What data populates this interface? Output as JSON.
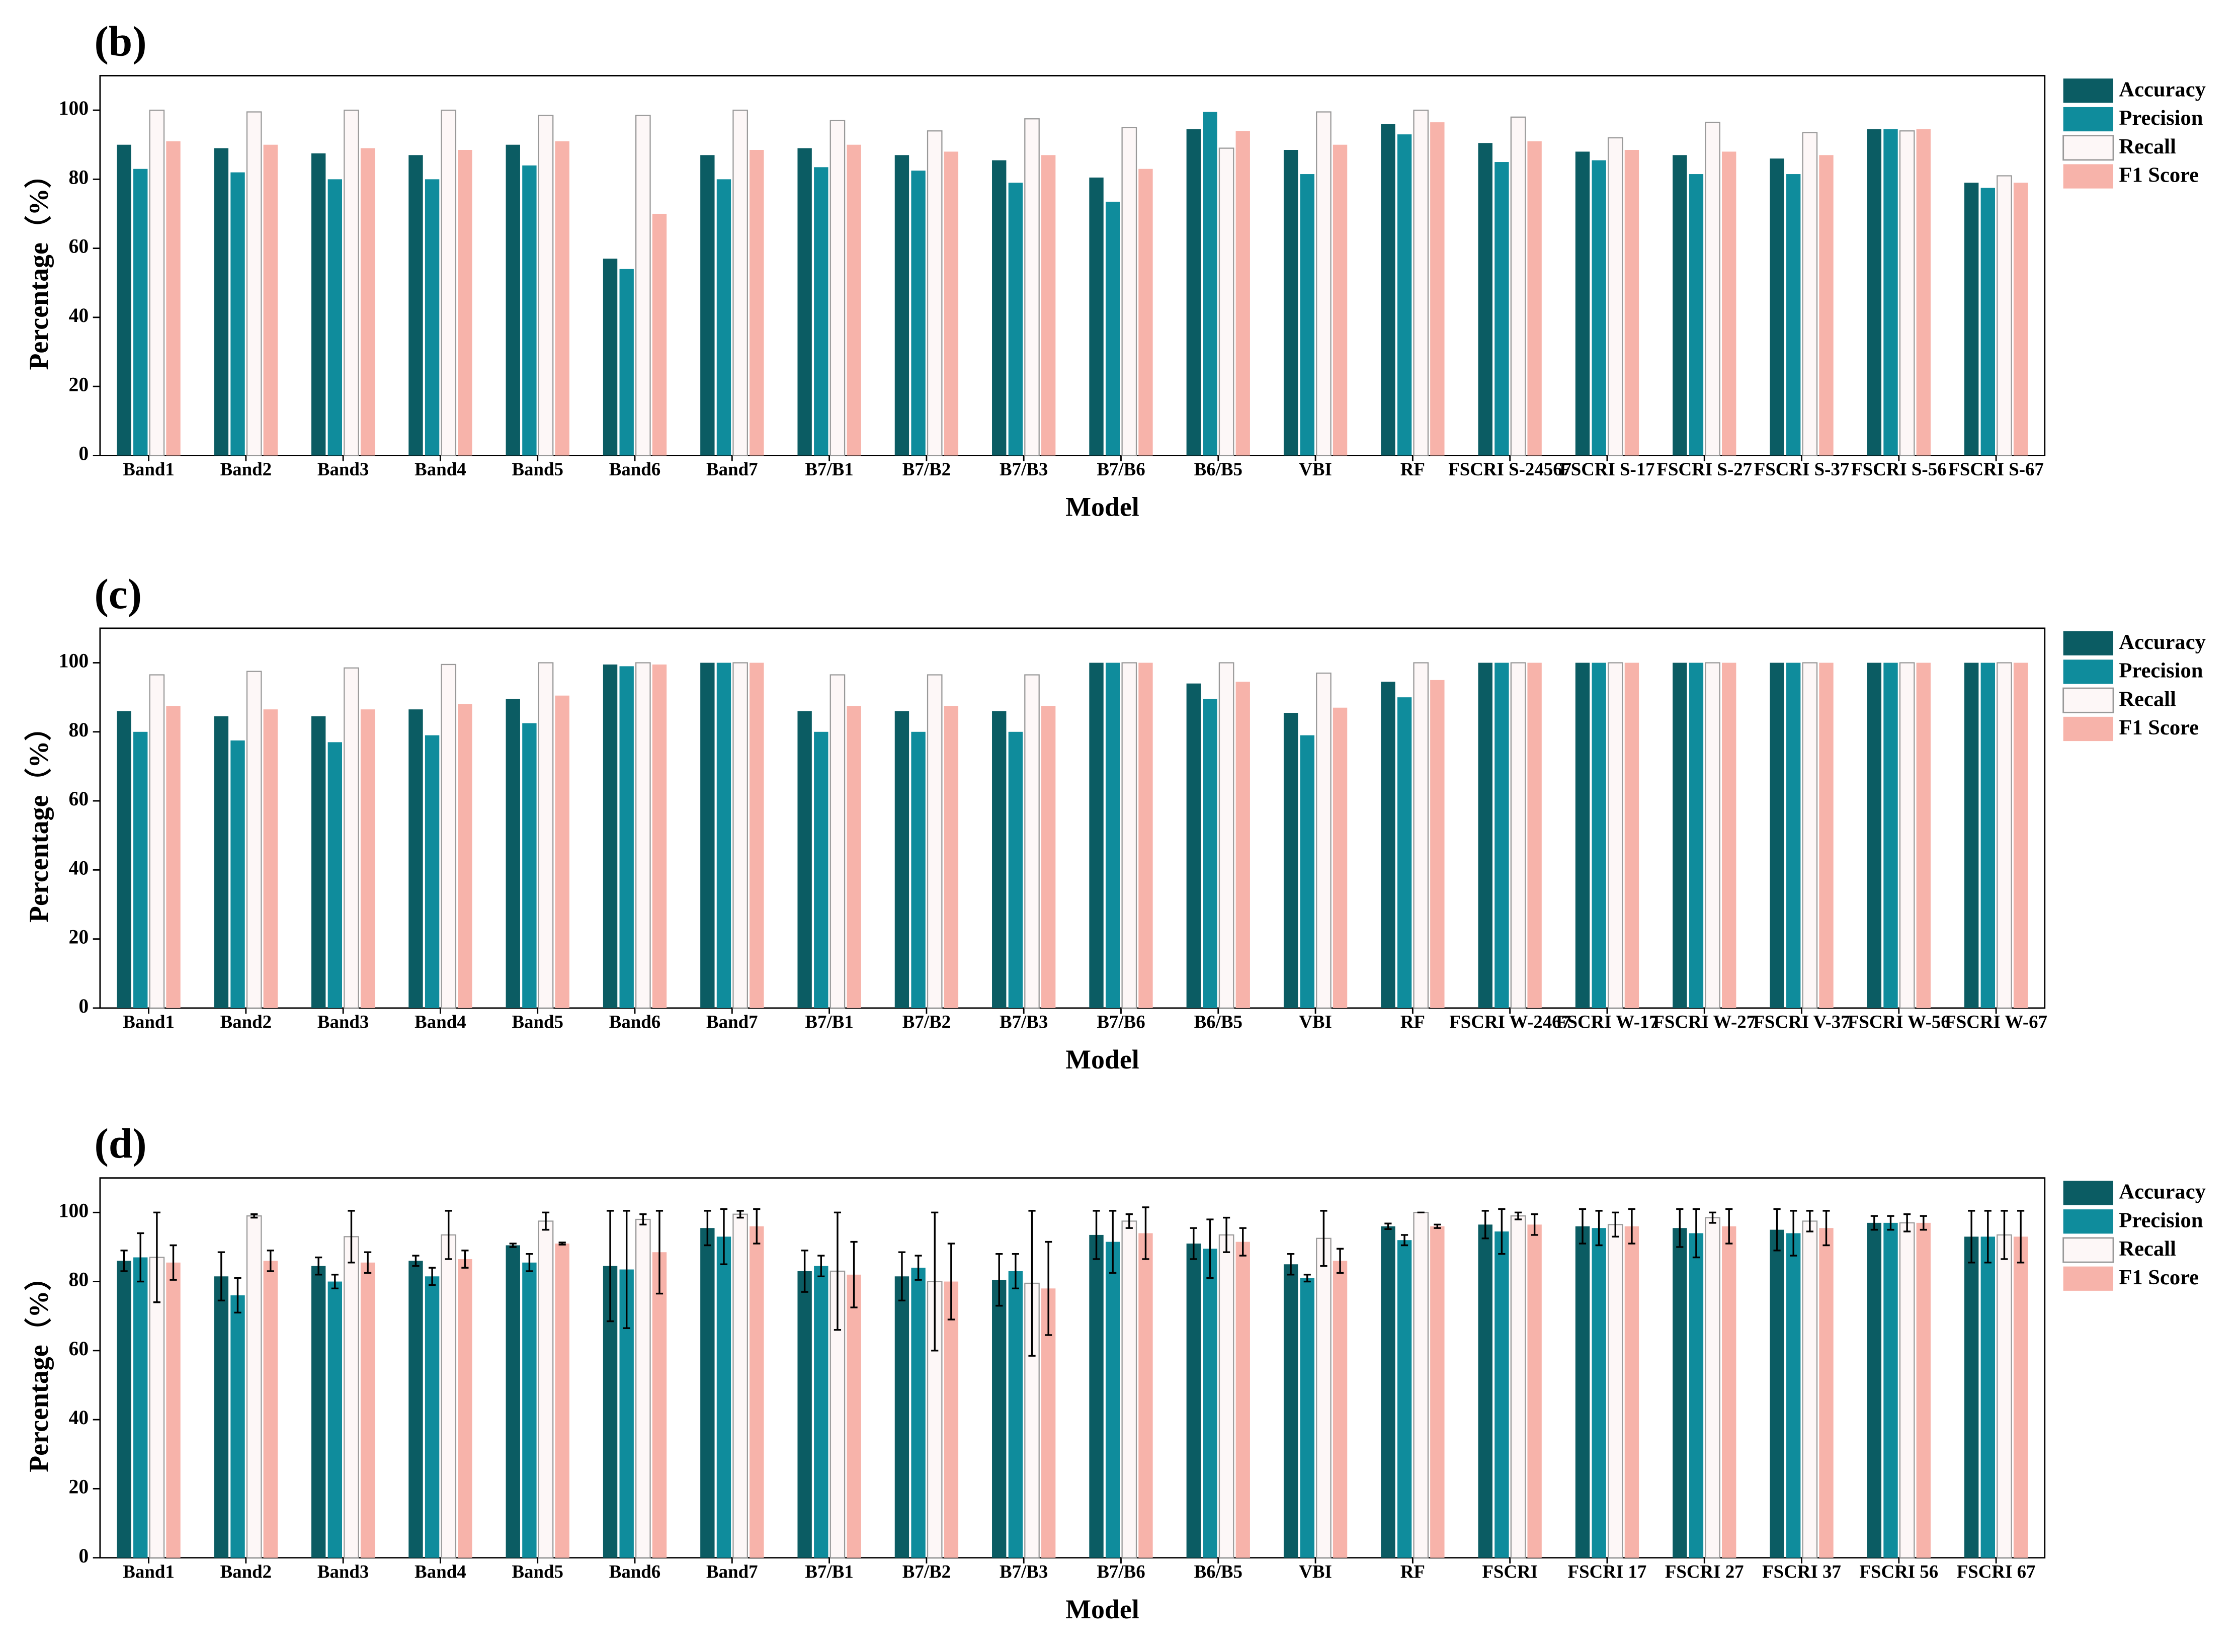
{
  "chart_data": [
    {
      "type": "bar",
      "title": "(b)",
      "x_label": "Model",
      "y_label": "Percentage（%）",
      "categories": [
        "Band1",
        "Band2",
        "Band3",
        "Band4",
        "Band5",
        "Band6",
        "Band7",
        "B7/B1",
        "B7/B2",
        "B7/B3",
        "B7/B6",
        "B6/B5",
        "VBI",
        "RF",
        "FSCRI S-24567",
        "FSCRI S-17",
        "FSCRI S-27",
        "FSCRI S-37",
        "FSCRI S-56",
        "FSCRI S-67"
      ],
      "series": [
        {
          "name": "Accuracy",
          "color": "#0b5c63",
          "values": [
            90,
            89,
            87.5,
            87,
            90,
            57,
            87,
            89,
            87,
            85.5,
            80.5,
            94.5,
            88.5,
            96,
            90.5,
            88,
            87,
            86,
            94.5,
            79
          ]
        },
        {
          "name": "Precision",
          "color": "#0f8c9c",
          "values": [
            83,
            82,
            80,
            80,
            84,
            54,
            80,
            83.5,
            82.5,
            79,
            73.5,
            99.5,
            81.5,
            93,
            85,
            85.5,
            81.5,
            81.5,
            94.5,
            77.5
          ]
        },
        {
          "name": "Recall",
          "color": "#fdf7f7",
          "values": [
            100,
            99.5,
            100,
            100,
            98.5,
            98.5,
            100,
            97,
            94,
            97.5,
            95,
            89,
            99.5,
            100,
            98,
            92,
            96.5,
            93.5,
            94,
            81
          ]
        },
        {
          "name": "F1 Score",
          "color": "#f7b3aa",
          "values": [
            91,
            90,
            89,
            88.5,
            91,
            70,
            88.5,
            90,
            88,
            87,
            83,
            94,
            90,
            96.5,
            91,
            88.5,
            88,
            87,
            94.5,
            79
          ]
        }
      ],
      "ylim": [
        0,
        110
      ],
      "yticks": [
        0,
        20,
        40,
        60,
        80,
        100
      ]
    },
    {
      "type": "bar",
      "title": "(c)",
      "x_label": "Model",
      "y_label": "Percentage（%）",
      "categories": [
        "Band1",
        "Band2",
        "Band3",
        "Band4",
        "Band5",
        "Band6",
        "Band7",
        "B7/B1",
        "B7/B2",
        "B7/B3",
        "B7/B6",
        "B6/B5",
        "VBI",
        "RF",
        "FSCRI W-2467",
        "FSCRI W-17",
        "FSCRI W-27",
        "FSCRI V-37",
        "FSCRI W-56",
        "FSCRI W-67"
      ],
      "series": [
        {
          "name": "Accuracy",
          "color": "#0b5c63",
          "values": [
            86,
            84.5,
            84.5,
            86.5,
            89.5,
            99.5,
            100,
            86,
            86,
            86,
            100,
            94,
            85.5,
            94.5,
            100,
            100,
            100,
            100,
            100,
            100
          ]
        },
        {
          "name": "Precision",
          "color": "#0f8c9c",
          "values": [
            80,
            77.5,
            77,
            79,
            82.5,
            99,
            100,
            80,
            80,
            80,
            100,
            89.5,
            79,
            90,
            100,
            100,
            100,
            100,
            100,
            100
          ]
        },
        {
          "name": "Recall",
          "color": "#fdf7f7",
          "values": [
            96.5,
            97.5,
            98.5,
            99.5,
            100,
            100,
            100,
            96.5,
            96.5,
            96.5,
            100,
            100,
            97,
            100,
            100,
            100,
            100,
            100,
            100,
            100
          ]
        },
        {
          "name": "F1 Score",
          "color": "#f7b3aa",
          "values": [
            87.5,
            86.5,
            86.5,
            88,
            90.5,
            99.5,
            100,
            87.5,
            87.5,
            87.5,
            100,
            94.5,
            87,
            95,
            100,
            100,
            100,
            100,
            100,
            100
          ]
        }
      ],
      "ylim": [
        0,
        110
      ],
      "yticks": [
        0,
        20,
        40,
        60,
        80,
        100
      ]
    },
    {
      "type": "errorbar",
      "title": "(d)",
      "x_label": "Model",
      "y_label": "Percentage（%）",
      "categories": [
        "Band1",
        "Band2",
        "Band3",
        "Band4",
        "Band5",
        "Band6",
        "Band7",
        "B7/B1",
        "B7/B2",
        "B7/B3",
        "B7/B6",
        "B6/B5",
        "VBI",
        "RF",
        "FSCRI",
        "FSCRI 17",
        "FSCRI 27",
        "FSCRI 37",
        "FSCRI 56",
        "FSCRI 67"
      ],
      "series": [
        {
          "name": "Accuracy",
          "color": "#0b5c63",
          "values": [
            86,
            81.5,
            84.5,
            86,
            90.5,
            84.5,
            95.5,
            83,
            81.5,
            80.5,
            93.5,
            91,
            85,
            96,
            96.5,
            96,
            95.5,
            95,
            97,
            93
          ],
          "errors": [
            3,
            7,
            2.5,
            1.5,
            0.5,
            16,
            5,
            6,
            7,
            7.5,
            7,
            4.5,
            3,
            0.8,
            4,
            5,
            5.5,
            6,
            2,
            7.5
          ]
        },
        {
          "name": "Precision",
          "color": "#0f8c9c",
          "values": [
            87,
            76,
            80,
            81.5,
            85.5,
            83.5,
            93,
            84.5,
            84,
            83,
            91.5,
            89.5,
            81,
            92,
            94.5,
            95.5,
            94,
            94,
            97,
            93
          ],
          "errors": [
            7,
            5,
            2,
            2.5,
            2.5,
            17,
            8,
            3,
            3.5,
            5,
            9,
            8.5,
            1,
            1.5,
            6.5,
            5,
            7,
            6.5,
            2,
            7.5
          ]
        },
        {
          "name": "Recall",
          "color": "#fdf7f7",
          "values": [
            87,
            99,
            93,
            93.5,
            97.5,
            98,
            99.5,
            83,
            80,
            79.5,
            97.5,
            93.5,
            92.5,
            100,
            99,
            96.5,
            98.5,
            97.5,
            97,
            93.5
          ],
          "errors": [
            13,
            0.5,
            7.5,
            7,
            2.5,
            1.5,
            1,
            17,
            20,
            21,
            2,
            5,
            8,
            0,
            1,
            3.5,
            1.5,
            3,
            2.5,
            7
          ]
        },
        {
          "name": "F1 Score",
          "color": "#f7b3aa",
          "values": [
            85.5,
            86,
            85.5,
            86.5,
            91,
            88.5,
            96,
            82,
            80,
            78,
            94,
            91.5,
            86,
            96,
            96.5,
            96,
            96,
            95.5,
            97,
            93
          ],
          "errors": [
            5,
            3,
            3,
            2.5,
            0.3,
            12,
            5,
            9.5,
            11,
            13.5,
            7.5,
            4,
            3.5,
            0.5,
            3,
            5,
            5,
            5,
            2,
            7.5
          ]
        }
      ],
      "ylim": [
        0,
        110
      ],
      "yticks": [
        0,
        20,
        40,
        60,
        80,
        100
      ]
    }
  ]
}
